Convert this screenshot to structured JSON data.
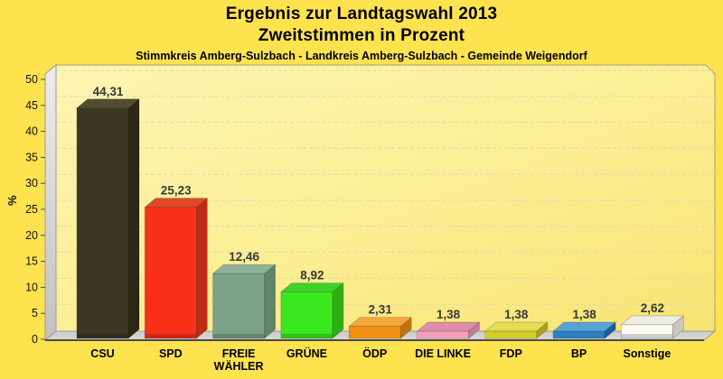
{
  "header": {
    "title_line1": "Ergebnis zur Landtagswahl 2013",
    "title_line2": "Zweitstimmen in Prozent",
    "subtitle": "Stimmkreis Amberg-Sulzbach - Landkreis Amberg-Sulzbach - Gemeinde Weigendorf"
  },
  "chart_data": {
    "type": "bar",
    "style": "3d-column",
    "title": "Ergebnis zur Landtagswahl 2013",
    "subtitle": "Zweitstimmen in Prozent",
    "subtitle2": "Stimmkreis Amberg-Sulzbach - Landkreis Amberg-Sulzbach - Gemeinde Weigendorf",
    "xlabel": "",
    "ylabel": "%",
    "ylim": [
      0,
      50
    ],
    "yticks": [
      0,
      5,
      10,
      15,
      20,
      25,
      30,
      35,
      40,
      45,
      50
    ],
    "grid": "horizontal-dashed",
    "legend": "none",
    "categories": [
      "CSU",
      "SPD",
      "FREIE WÄHLER",
      "GRÜNE",
      "ÖDP",
      "DIE LINKE",
      "FDP",
      "BP",
      "Sonstige"
    ],
    "values": [
      44.31,
      25.23,
      12.46,
      8.92,
      2.31,
      1.38,
      1.38,
      1.38,
      2.62
    ],
    "series": [
      {
        "name": "CSU",
        "value": 44.31,
        "label": "44,31",
        "label_lines": [
          "CSU"
        ],
        "color_front": "#3d3823",
        "color_top": "#524c31",
        "color_side": "#2b2714"
      },
      {
        "name": "SPD",
        "value": 25.23,
        "label": "25,23",
        "label_lines": [
          "SPD"
        ],
        "color_front": "#f93018",
        "color_top": "#e04828",
        "color_side": "#bf2a14"
      },
      {
        "name": "FREIE WÄHLER",
        "value": 12.46,
        "label": "12,46",
        "label_lines": [
          "FREIE",
          "WÄHLER"
        ],
        "color_front": "#7ca287",
        "color_top": "#90b19a",
        "color_side": "#5f8468"
      },
      {
        "name": "GRÜNE",
        "value": 8.92,
        "label": "8,92",
        "label_lines": [
          "GRÜNE"
        ],
        "color_front": "#39e81f",
        "color_top": "#3ed32a",
        "color_side": "#2cb015"
      },
      {
        "name": "ÖDP",
        "value": 2.31,
        "label": "2,31",
        "label_lines": [
          "ÖDP"
        ],
        "color_front": "#ef9012",
        "color_top": "#f4a83c",
        "color_side": "#c27308"
      },
      {
        "name": "DIE LINKE",
        "value": 1.38,
        "label": "1,38",
        "label_lines": [
          "DIE LINKE"
        ],
        "color_front": "#f2a0bc",
        "color_top": "#de8fac",
        "color_side": "#c57a96"
      },
      {
        "name": "FDP",
        "value": 1.38,
        "label": "1,38",
        "label_lines": [
          "FDP"
        ],
        "color_front": "#d6ce28",
        "color_top": "#e3dd55",
        "color_side": "#a9a31c"
      },
      {
        "name": "BP",
        "value": 1.38,
        "label": "1,38",
        "label_lines": [
          "BP"
        ],
        "color_front": "#2b7fc2",
        "color_top": "#55a2d8",
        "color_side": "#1c5e96"
      },
      {
        "name": "Sonstige",
        "value": 2.62,
        "label": "2,62",
        "label_lines": [
          "Sonstige"
        ],
        "color_front": "#fbfbf4",
        "color_top": "#ededE4",
        "color_side": "#c9c9c0"
      }
    ],
    "colors": {
      "page_background": "#ffe34e",
      "plot_gradient_light": "#fdf5b2",
      "plot_gradient_dark": "#f8e472",
      "wall_gray_light": "#ededed",
      "wall_gray_dark": "#c2c2c2",
      "floor_gray_light": "#d6d6d6",
      "floor_gray_dark": "#c6c6c6",
      "gridline": "#ddd6bd",
      "axis_line": "#4a4a4a",
      "text": "#000000"
    }
  }
}
